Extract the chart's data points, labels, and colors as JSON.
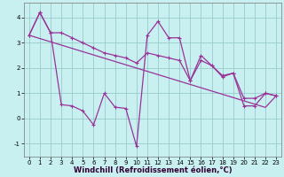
{
  "background_color": "#c8f0f0",
  "grid_color": "#99cccc",
  "line_color": "#993399",
  "xlabel": "Windchill (Refroidissement éolien,°C)",
  "xlim": [
    -0.5,
    23.5
  ],
  "ylim": [
    -1.5,
    4.6
  ],
  "yticks": [
    -1,
    0,
    1,
    2,
    3,
    4
  ],
  "xticks": [
    0,
    1,
    2,
    3,
    4,
    5,
    6,
    7,
    8,
    9,
    10,
    11,
    12,
    13,
    14,
    15,
    16,
    17,
    18,
    19,
    20,
    21,
    22,
    23
  ],
  "line1_x": [
    0,
    1,
    2,
    3,
    4,
    5,
    6,
    7,
    8,
    9,
    10,
    11,
    12,
    13,
    14,
    15,
    16,
    17,
    18,
    19,
    20,
    21,
    22,
    23
  ],
  "line1_y": [
    3.3,
    4.2,
    3.4,
    0.55,
    0.5,
    0.3,
    -0.25,
    1.0,
    0.45,
    0.4,
    -1.1,
    3.3,
    3.85,
    3.2,
    3.2,
    1.5,
    2.5,
    2.1,
    1.65,
    1.8,
    0.5,
    0.5,
    1.0,
    0.9
  ],
  "line2_x": [
    0,
    1,
    2,
    3,
    4,
    5,
    6,
    7,
    8,
    9,
    10,
    11,
    12,
    13,
    14,
    15,
    16,
    17,
    18,
    19,
    20,
    21,
    22,
    23
  ],
  "line2_y": [
    3.3,
    4.2,
    3.4,
    3.4,
    3.2,
    3.0,
    2.8,
    2.6,
    2.5,
    2.4,
    2.2,
    2.6,
    2.5,
    2.4,
    2.3,
    1.5,
    2.3,
    2.1,
    1.7,
    1.8,
    0.8,
    0.8,
    1.0,
    0.9
  ],
  "line3_x": [
    0,
    1,
    2,
    3,
    4,
    5,
    6,
    7,
    8,
    9,
    10,
    11,
    12,
    13,
    14,
    15,
    16,
    17,
    18,
    19,
    20,
    21,
    22,
    23
  ],
  "line3_y": [
    3.3,
    3.17,
    3.04,
    2.91,
    2.78,
    2.65,
    2.52,
    2.39,
    2.26,
    2.13,
    2.0,
    1.87,
    1.74,
    1.61,
    1.48,
    1.35,
    1.22,
    1.09,
    0.96,
    0.83,
    0.7,
    0.57,
    0.44,
    0.9
  ],
  "marker_size": 2.5,
  "line_width": 0.9,
  "tick_fontsize": 5.0,
  "xlabel_fontsize": 6.0
}
